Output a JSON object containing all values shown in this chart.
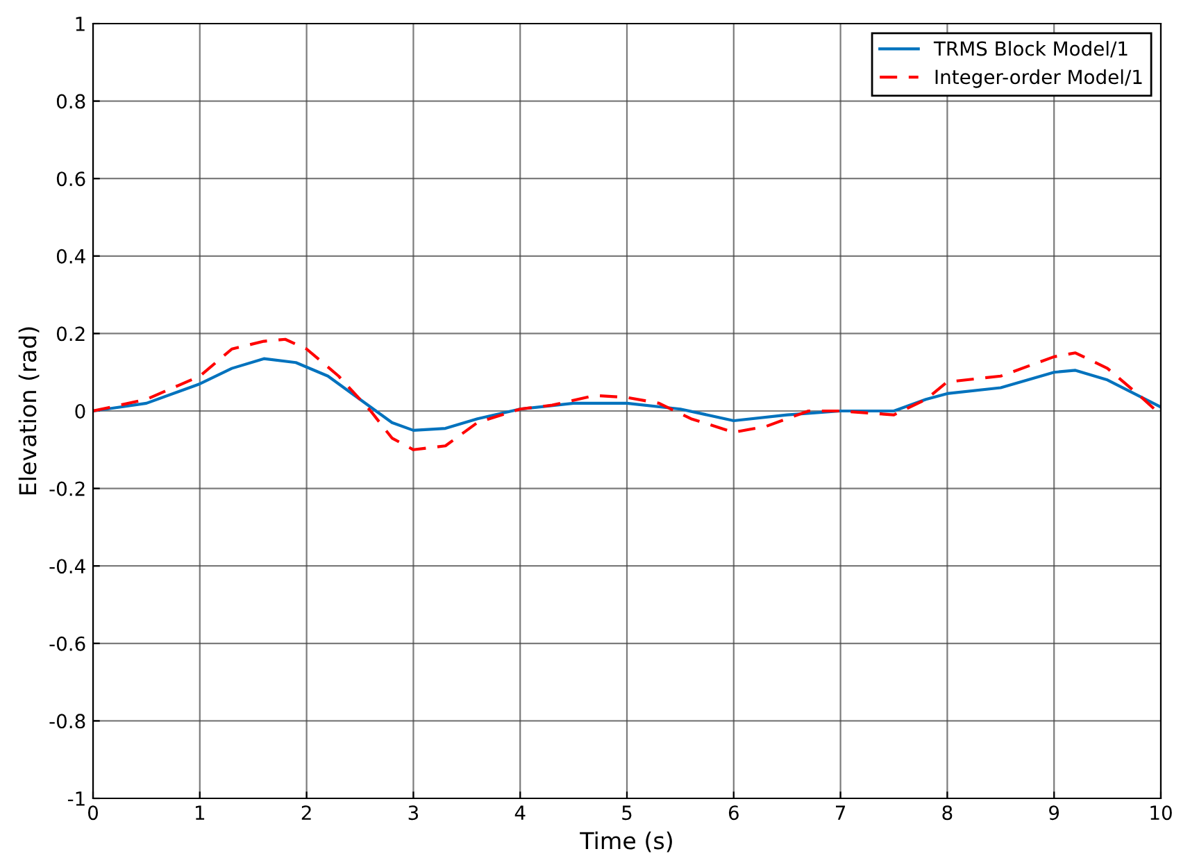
{
  "chart_data": {
    "type": "line",
    "xlabel": "Time (s)",
    "ylabel": "Elevation (rad)",
    "xlim": [
      0,
      10
    ],
    "ylim": [
      -1,
      1
    ],
    "xticks": [
      0,
      1,
      2,
      3,
      4,
      5,
      6,
      7,
      8,
      9,
      10
    ],
    "yticks": [
      -1,
      -0.8,
      -0.6,
      -0.4,
      -0.2,
      0,
      0.2,
      0.4,
      0.6,
      0.8,
      1
    ],
    "grid": true,
    "legend": "top right",
    "series": [
      {
        "name": "TRMS Block Model/1",
        "color": "#0072bd",
        "line_style": "solid",
        "x": [
          0,
          0.5,
          1,
          1.3,
          1.6,
          1.9,
          2.2,
          2.5,
          2.8,
          3.0,
          3.3,
          3.6,
          4,
          4.5,
          5,
          5.5,
          6,
          6.5,
          7,
          7.5,
          7.8,
          8.0,
          8.5,
          9.0,
          9.2,
          9.5,
          10
        ],
        "values": [
          0,
          0.02,
          0.07,
          0.11,
          0.135,
          0.125,
          0.09,
          0.03,
          -0.03,
          -0.05,
          -0.045,
          -0.02,
          0.005,
          0.02,
          0.02,
          0.005,
          -0.025,
          -0.01,
          0,
          0,
          0.03,
          0.045,
          0.06,
          0.1,
          0.105,
          0.08,
          0.01
        ]
      },
      {
        "name": "Integer-order Model/1",
        "color": "#ff0000",
        "line_style": "dashed",
        "x": [
          0,
          0.5,
          1,
          1.3,
          1.6,
          1.8,
          2.0,
          2.3,
          2.6,
          2.8,
          3.0,
          3.3,
          3.6,
          4.0,
          4.3,
          4.7,
          5.0,
          5.3,
          5.6,
          6.0,
          6.3,
          6.7,
          7.0,
          7.5,
          7.8,
          8.0,
          8.5,
          9.0,
          9.2,
          9.5,
          9.8,
          10
        ],
        "values": [
          0,
          0.03,
          0.09,
          0.16,
          0.18,
          0.185,
          0.16,
          0.09,
          0,
          -0.07,
          -0.1,
          -0.09,
          -0.03,
          0.005,
          0.015,
          0.04,
          0.035,
          0.02,
          -0.02,
          -0.055,
          -0.04,
          0,
          0,
          -0.01,
          0.03,
          0.075,
          0.09,
          0.14,
          0.15,
          0.11,
          0.04,
          -0.01
        ]
      }
    ]
  }
}
